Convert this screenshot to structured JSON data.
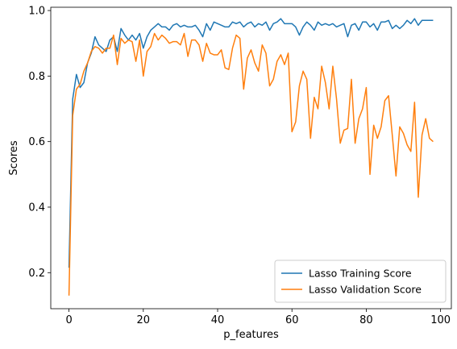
{
  "chart_data": {
    "type": "line",
    "xlabel": "p_features",
    "ylabel": "Scores",
    "xlim": [
      -4.9,
      102.9
    ],
    "ylim": [
      0.09,
      1.01
    ],
    "x_ticks": [
      0,
      20,
      40,
      60,
      80,
      100
    ],
    "x_tick_labels": [
      "0",
      "20",
      "40",
      "60",
      "80",
      "100"
    ],
    "y_ticks": [
      0.2,
      0.4,
      0.6,
      0.8,
      1.0
    ],
    "y_tick_labels": [
      "0.2",
      "0.4",
      "0.6",
      "0.8",
      "1.0"
    ],
    "legend_position": "bottom-right",
    "grid": false,
    "series": [
      {
        "name": "Lasso Training Score",
        "color": "#1f77b4",
        "values": [
          0.215,
          0.73,
          0.805,
          0.765,
          0.78,
          0.84,
          0.87,
          0.92,
          0.895,
          0.885,
          0.875,
          0.91,
          0.92,
          0.875,
          0.945,
          0.925,
          0.91,
          0.925,
          0.91,
          0.93,
          0.885,
          0.92,
          0.94,
          0.95,
          0.96,
          0.95,
          0.95,
          0.94,
          0.955,
          0.96,
          0.95,
          0.955,
          0.95,
          0.95,
          0.955,
          0.94,
          0.92,
          0.96,
          0.94,
          0.965,
          0.96,
          0.955,
          0.95,
          0.95,
          0.965,
          0.96,
          0.965,
          0.95,
          0.96,
          0.965,
          0.95,
          0.96,
          0.955,
          0.965,
          0.94,
          0.96,
          0.965,
          0.975,
          0.96,
          0.96,
          0.96,
          0.95,
          0.925,
          0.95,
          0.965,
          0.955,
          0.94,
          0.965,
          0.955,
          0.96,
          0.955,
          0.96,
          0.95,
          0.955,
          0.96,
          0.92,
          0.955,
          0.96,
          0.94,
          0.965,
          0.965,
          0.95,
          0.96,
          0.94,
          0.965,
          0.965,
          0.97,
          0.945,
          0.955,
          0.945,
          0.955,
          0.97,
          0.96,
          0.975,
          0.955,
          0.97,
          0.97,
          0.97,
          0.97
        ]
      },
      {
        "name": "Lasso Validation Score",
        "color": "#ff7f0e",
        "values": [
          0.13,
          0.68,
          0.76,
          0.775,
          0.815,
          0.84,
          0.875,
          0.89,
          0.885,
          0.87,
          0.885,
          0.885,
          0.925,
          0.835,
          0.915,
          0.9,
          0.91,
          0.905,
          0.845,
          0.91,
          0.8,
          0.875,
          0.89,
          0.93,
          0.91,
          0.925,
          0.915,
          0.9,
          0.905,
          0.905,
          0.895,
          0.93,
          0.86,
          0.91,
          0.91,
          0.895,
          0.845,
          0.9,
          0.87,
          0.865,
          0.865,
          0.88,
          0.825,
          0.82,
          0.885,
          0.925,
          0.915,
          0.76,
          0.855,
          0.88,
          0.84,
          0.815,
          0.895,
          0.87,
          0.77,
          0.79,
          0.845,
          0.865,
          0.835,
          0.87,
          0.63,
          0.66,
          0.77,
          0.815,
          0.79,
          0.61,
          0.735,
          0.7,
          0.83,
          0.78,
          0.7,
          0.83,
          0.73,
          0.595,
          0.635,
          0.64,
          0.79,
          0.595,
          0.67,
          0.7,
          0.765,
          0.5,
          0.65,
          0.61,
          0.645,
          0.725,
          0.74,
          0.62,
          0.495,
          0.645,
          0.625,
          0.59,
          0.57,
          0.72,
          0.43,
          0.62,
          0.67,
          0.61,
          0.6
        ]
      }
    ]
  }
}
